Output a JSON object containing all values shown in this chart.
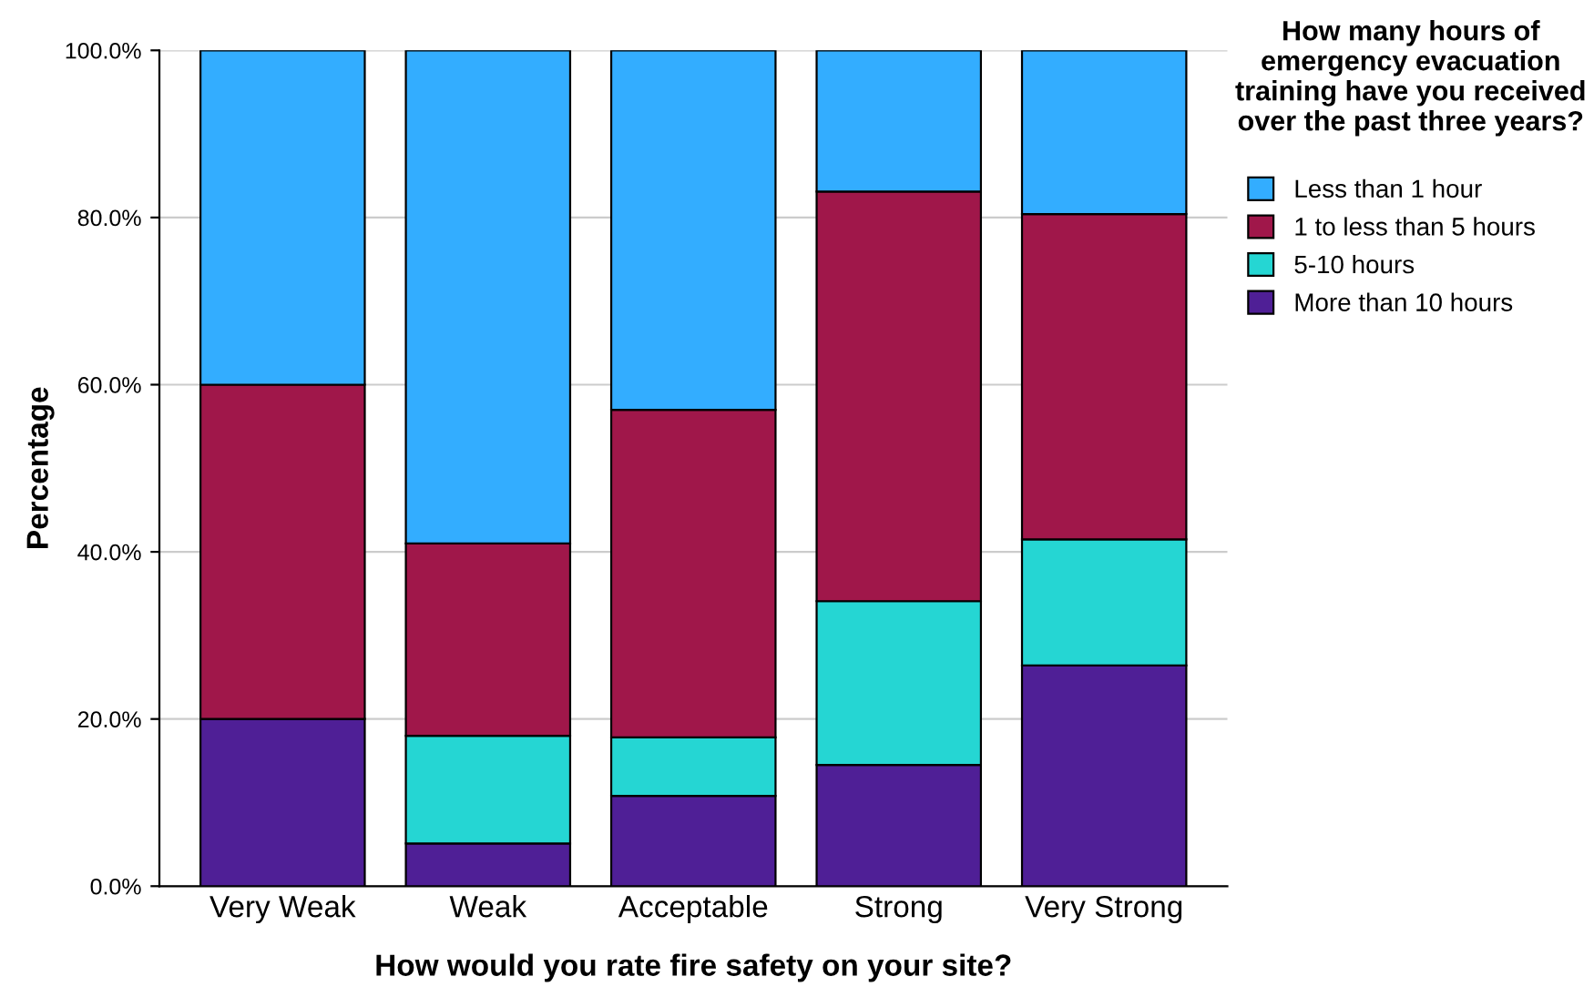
{
  "chart_data": {
    "type": "bar",
    "stacked": true,
    "xlabel": "How would you rate fire safety on your site?",
    "ylabel": "Percentage",
    "legend_title": "How many hours of emergency evacuation training have you received over the past three years?",
    "categories": [
      "Very Weak",
      "Weak",
      "Acceptable",
      "Strong",
      "Very Strong"
    ],
    "series": [
      {
        "name": "More than 10 hours",
        "color": "#4f1f96",
        "values": [
          20.0,
          5.1,
          10.8,
          14.5,
          26.4
        ]
      },
      {
        "name": "5-10 hours",
        "color": "#25d6d3",
        "values": [
          0.0,
          12.9,
          7.0,
          19.6,
          15.1
        ]
      },
      {
        "name": "1 to less than 5 hours",
        "color": "#a0174a",
        "values": [
          40.0,
          23.0,
          39.2,
          49.0,
          38.9
        ]
      },
      {
        "name": "Less than 1 hour",
        "color": "#33adff",
        "values": [
          40.0,
          59.0,
          43.0,
          16.9,
          19.6
        ]
      }
    ],
    "ylim": [
      0,
      100
    ],
    "yticks": [
      {
        "value": 0,
        "label": "0.0%"
      },
      {
        "value": 20,
        "label": "20.0%"
      },
      {
        "value": 40,
        "label": "40.0%"
      },
      {
        "value": 60,
        "label": "60.0%"
      },
      {
        "value": 80,
        "label": "80.0%"
      },
      {
        "value": 100,
        "label": "100.0%"
      }
    ],
    "grid": "y",
    "legend": "right"
  }
}
